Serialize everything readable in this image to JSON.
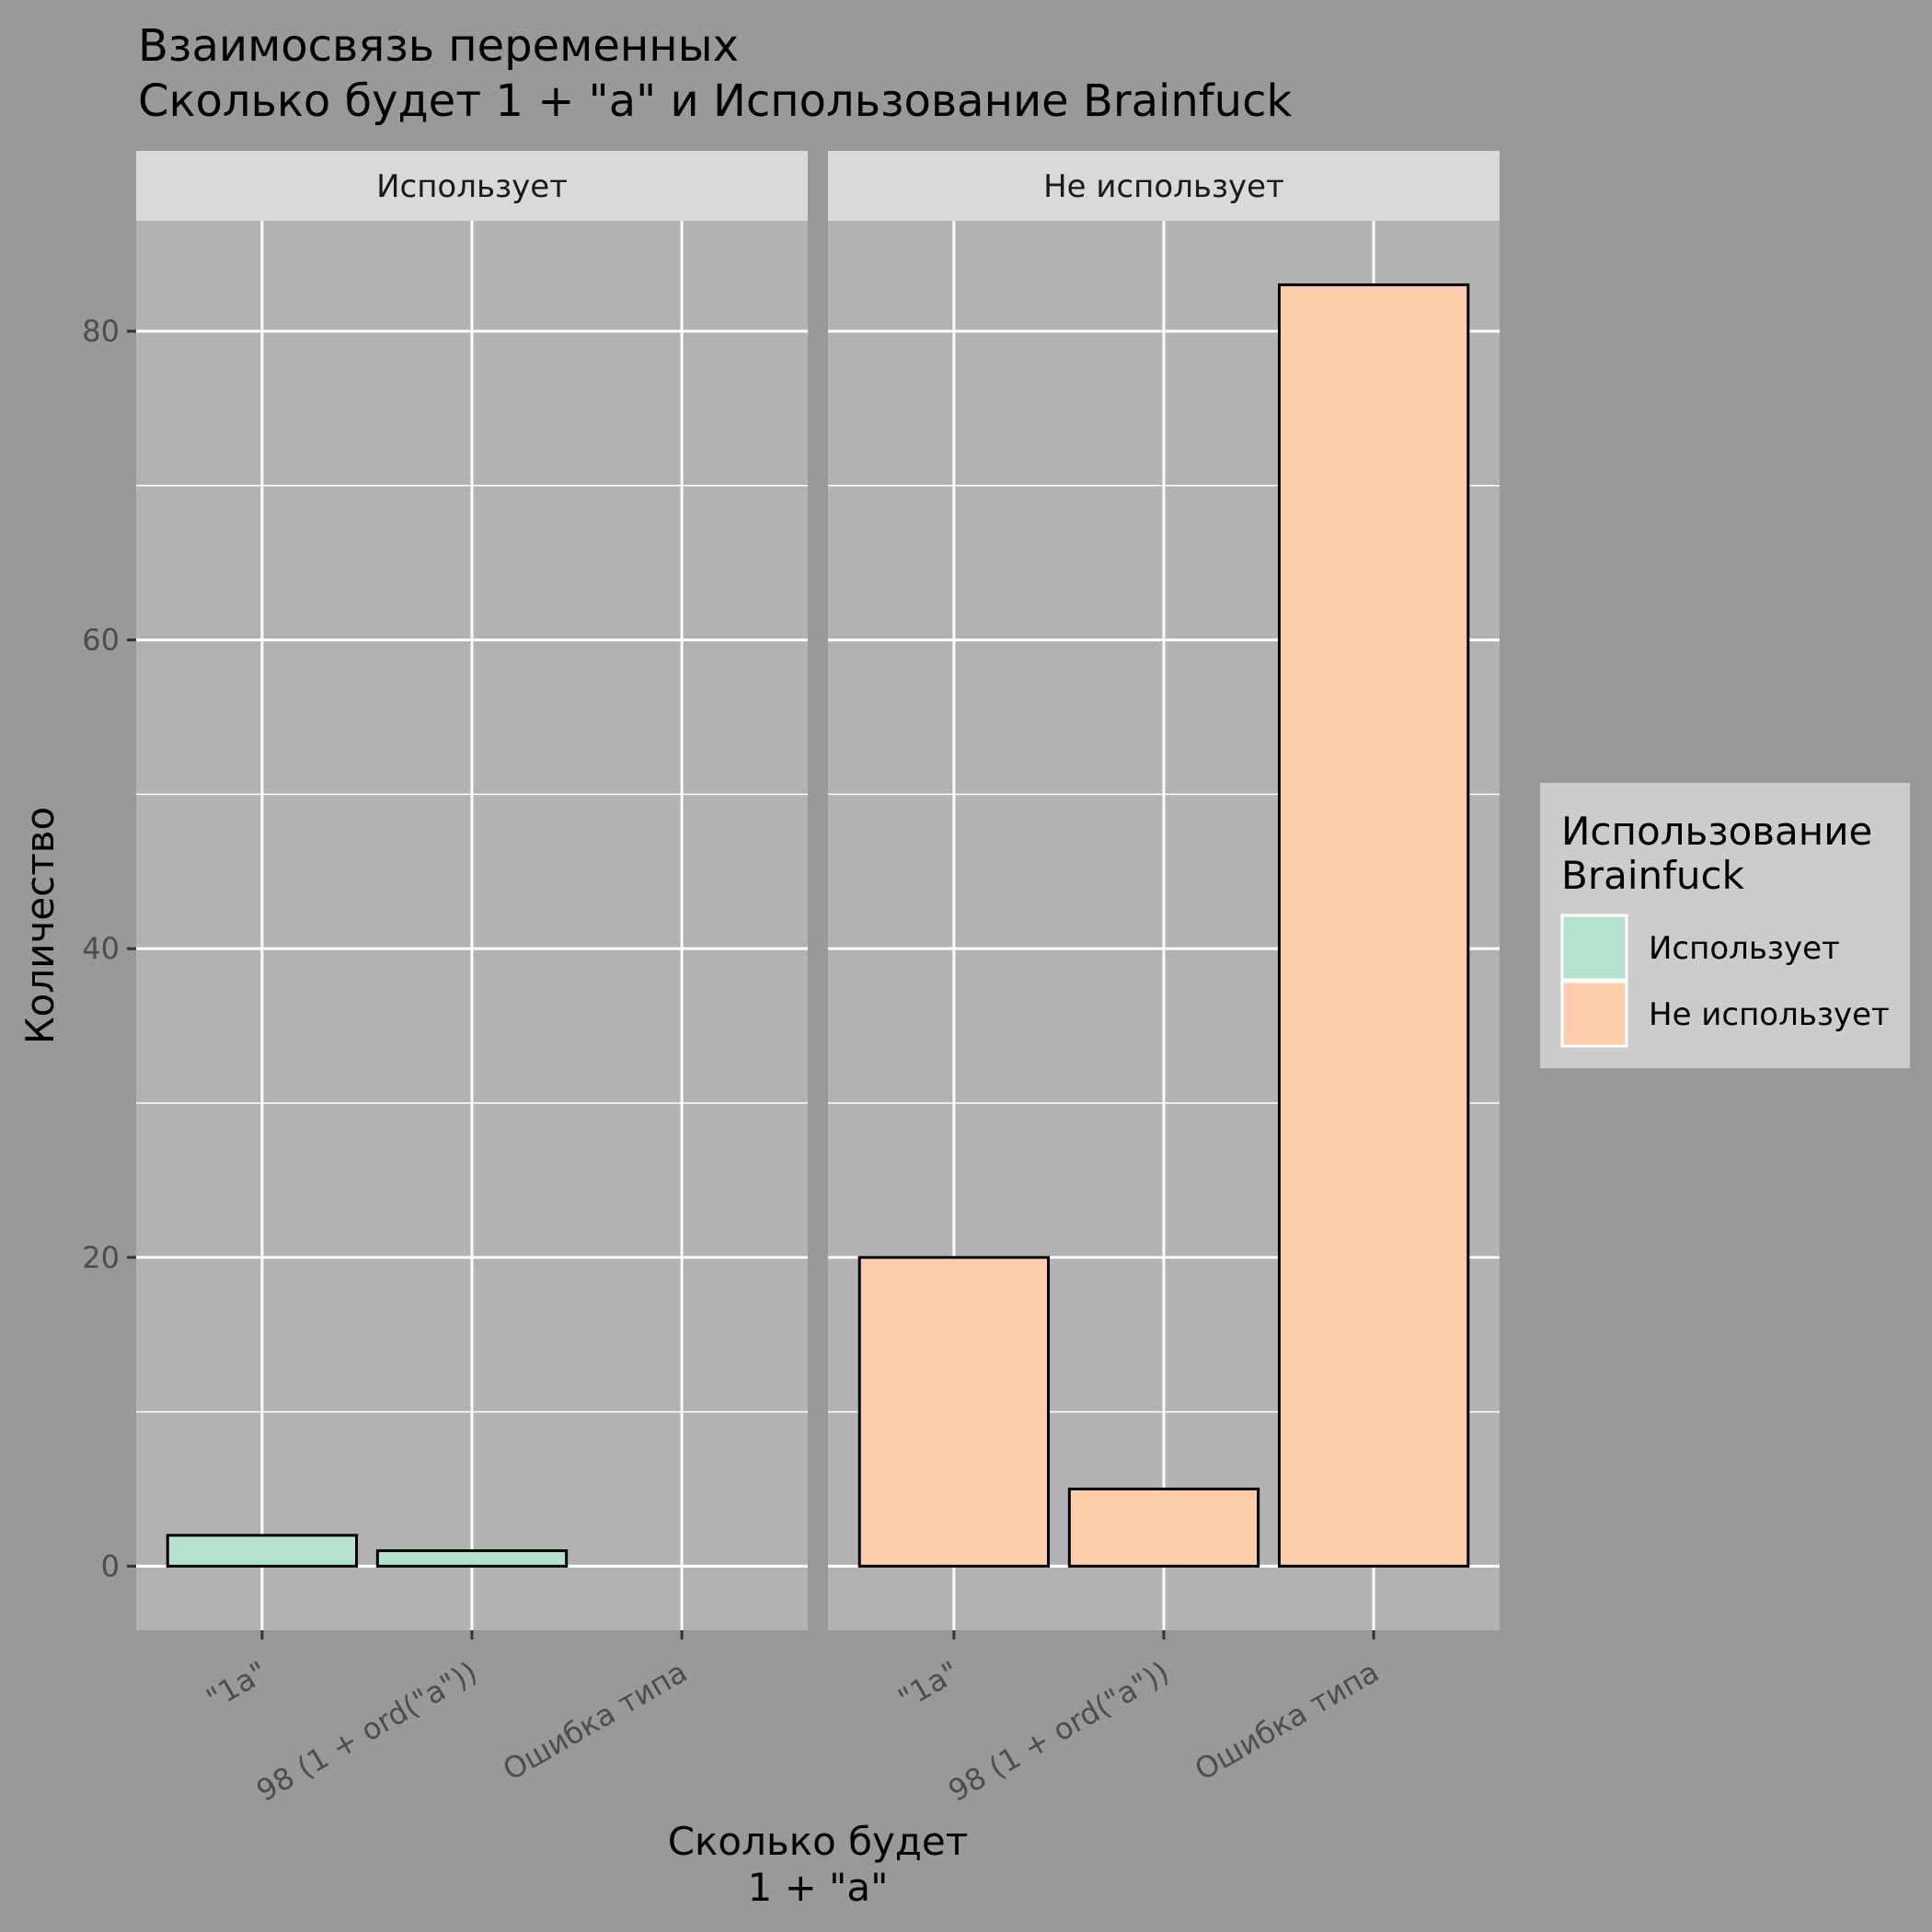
{
  "chart_data": {
    "type": "bar",
    "title_lines": [
      "Взаимосвязь переменных",
      " Сколько будет 1 + \"a\" и Использование Brainfuck"
    ],
    "xlabel_lines": [
      "Сколько будет",
      "1 + \"a\""
    ],
    "ylabel": "Количество",
    "categories": [
      "\"1a\"",
      "98 (1 + ord(\"a\"))",
      "Ошибка типа"
    ],
    "facets": [
      {
        "name": "Использует",
        "values": [
          2,
          1,
          0
        ],
        "color": "#b3e2cd"
      },
      {
        "name": "Не использует",
        "values": [
          20,
          5,
          83
        ],
        "color": "#fdcdac"
      }
    ],
    "yticks": [
      0,
      20,
      40,
      60,
      80
    ],
    "ylim": [
      -4.15,
      87.15
    ],
    "legend": {
      "title_lines": [
        "Использование",
        "Brainfuck"
      ],
      "items": [
        {
          "label": "Использует",
          "color": "#b3e2cd"
        },
        {
          "label": "Не использует",
          "color": "#fdcdac"
        }
      ],
      "position": "right"
    },
    "grid": true
  }
}
